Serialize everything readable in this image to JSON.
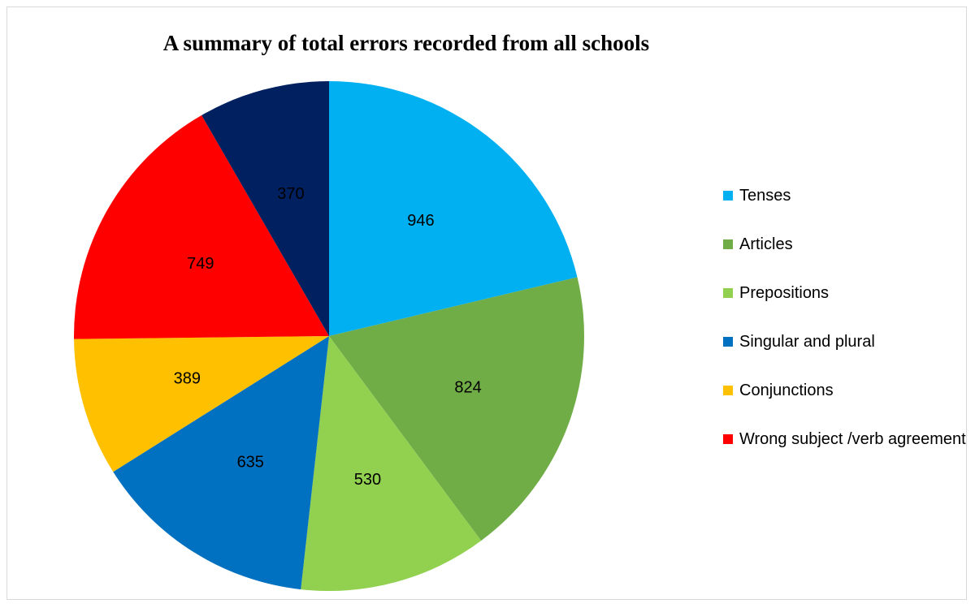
{
  "chart_data": {
    "type": "pie",
    "title": "A summary of total errors recorded from all schools",
    "start_angle_deg": 0,
    "direction": "clockwise",
    "slices": [
      {
        "name": "Tenses",
        "value": 946,
        "label": "946",
        "color": "#00B0F0"
      },
      {
        "name": "Articles",
        "value": 824,
        "label": "824",
        "color": "#70AD47"
      },
      {
        "name": "Prepositions",
        "value": 530,
        "label": "530",
        "color": "#92D050"
      },
      {
        "name": "Singular and plural",
        "value": 635,
        "label": "635",
        "color": "#0070C0"
      },
      {
        "name": "Conjunctions",
        "value": 389,
        "label": "389",
        "color": "#FFC000"
      },
      {
        "name": "Wrong subject /verb agreement",
        "value": 749,
        "label": "749",
        "color": "#FF0000"
      },
      {
        "name": "",
        "value": 370,
        "label": "370",
        "color": "#002060"
      }
    ],
    "legend": {
      "position": "right",
      "items": [
        {
          "label": "Tenses",
          "color": "#00B0F0"
        },
        {
          "label": "Articles",
          "color": "#70AD47"
        },
        {
          "label": "Prepositions",
          "color": "#92D050"
        },
        {
          "label": "Singular and plural",
          "color": "#0070C0"
        },
        {
          "label": "Conjunctions",
          "color": "#FFC000"
        },
        {
          "label": "Wrong subject /verb agreement",
          "color": "#FF0000"
        }
      ]
    }
  }
}
